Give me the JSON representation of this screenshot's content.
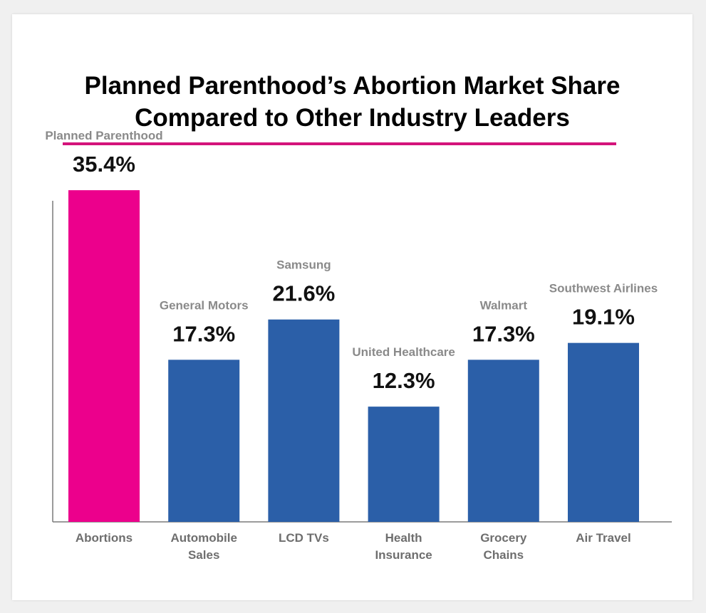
{
  "colors": {
    "highlight": "#EC008C",
    "bar": "#2B5FA8",
    "divider": "#D4147B",
    "company_label": "#8A8A8A",
    "value_label": "#111111",
    "category_label": "#6E6E6E",
    "axis": "#7A7A7A"
  },
  "chart_data": {
    "type": "bar",
    "title": "Planned Parenthood’s Abortion Market Share Compared to Other Industry Leaders",
    "title_lines": [
      "Planned Parenthood’s Abortion Market Share",
      "Compared to Other Industry Leaders"
    ],
    "xlabel": "",
    "ylabel": "",
    "ylim": [
      0,
      40
    ],
    "grid": false,
    "categories": [
      [
        "Abortions"
      ],
      [
        "Automobile",
        "Sales"
      ],
      [
        "LCD TVs"
      ],
      [
        "Health",
        "Insurance"
      ],
      [
        "Grocery",
        "Chains"
      ],
      [
        "Air Travel"
      ]
    ],
    "companies": [
      "Planned Parenthood",
      "General Motors",
      "Samsung",
      "United Healthcare",
      "Walmart",
      "Southwest Airlines"
    ],
    "values": [
      35.4,
      17.3,
      21.6,
      12.3,
      17.3,
      19.1
    ],
    "value_labels": [
      "35.4%",
      "17.3%",
      "21.6%",
      "12.3%",
      "17.3%",
      "19.1%"
    ],
    "highlight_index": 0
  }
}
